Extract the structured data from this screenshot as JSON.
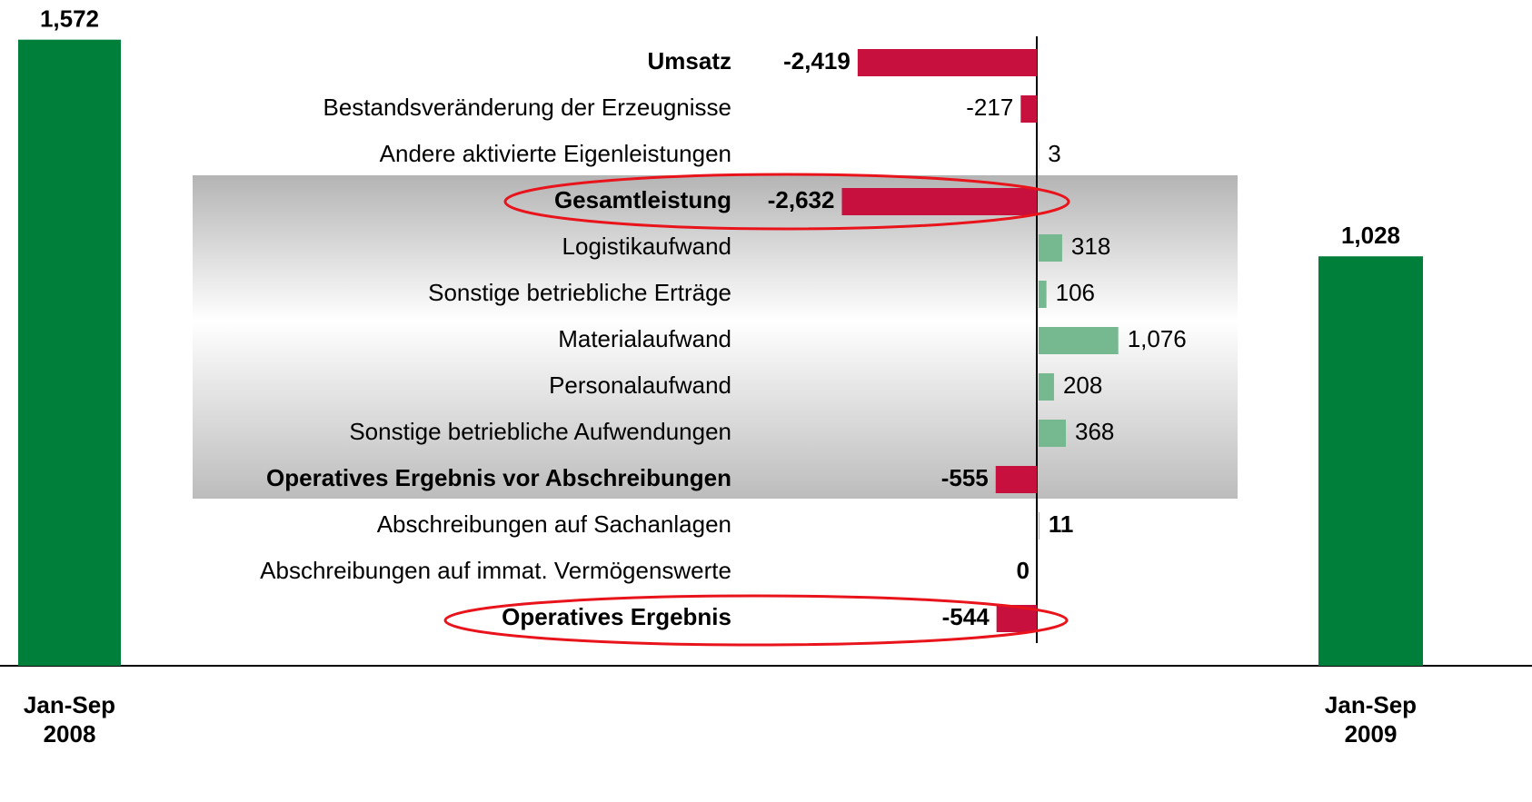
{
  "chart_data": {
    "type": "bridge",
    "categories": [
      "Jan-Sep 2008",
      "Jan-Sep 2009"
    ],
    "values": [
      1572,
      1028
    ],
    "value_labels": [
      "1,572",
      "1,028"
    ],
    "color": "#007f3a",
    "items": [
      "Umsatz",
      "Bestandsveränderung der Erzeugnisse",
      "Andere aktivierte Eigenleistungen",
      "Gesamtleistung",
      "Logistikaufwand",
      "Sonstige betriebliche Erträge",
      "Materialaufwand",
      "Personalaufwand",
      "Sonstige betriebliche Aufwendungen",
      "Operatives Ergebnis vor Abschreibungen",
      "Abschreibungen auf Sachanlagen",
      "Abschreibungen auf immat. Vermögenswerte",
      "Operatives Ergebnis"
    ],
    "item_values": [
      -2419,
      -217,
      3,
      -2632,
      318,
      106,
      1076,
      208,
      368,
      -555,
      11,
      0,
      -544
    ],
    "item_value_labels": [
      "-2,419",
      "-217",
      "3",
      "-2,632",
      "318",
      "106",
      "1,076",
      "208",
      "368",
      "-555",
      "11",
      "0",
      "-544"
    ],
    "label_bold": [
      true,
      false,
      false,
      true,
      false,
      false,
      false,
      false,
      false,
      true,
      false,
      false,
      true
    ],
    "value_bold": [
      true,
      false,
      false,
      true,
      false,
      false,
      false,
      false,
      false,
      true,
      true,
      true,
      true
    ],
    "negative_color": "#c8103e",
    "positive_color": "#76b890"
  }
}
